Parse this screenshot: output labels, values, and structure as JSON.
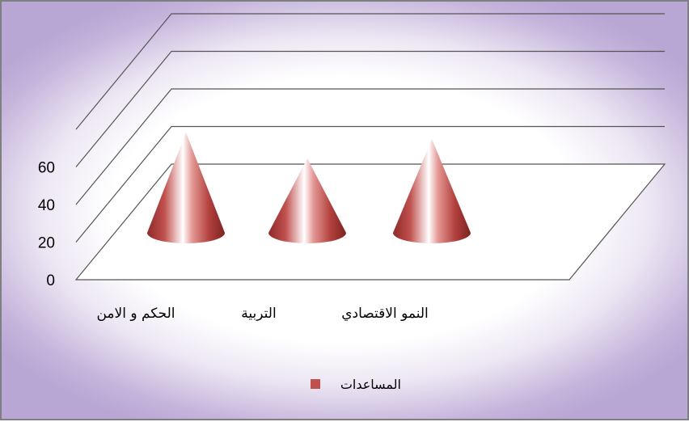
{
  "chart_data": {
    "type": "bar",
    "shape": "3d-cone",
    "categories": [
      "الحكم و الامن",
      "التربية",
      "النمو الاقتصادي"
    ],
    "series": [
      {
        "name": "المساعدات",
        "values": [
          62,
          46,
          58
        ]
      }
    ],
    "y_ticks": [
      "0",
      "20",
      "40",
      "60"
    ],
    "ylim": [
      0,
      60
    ],
    "grid": true,
    "legend_position": "bottom",
    "colors": {
      "series": "#c0504d",
      "frame_glow": "#b8a6d4",
      "gridline": "#555555"
    }
  }
}
